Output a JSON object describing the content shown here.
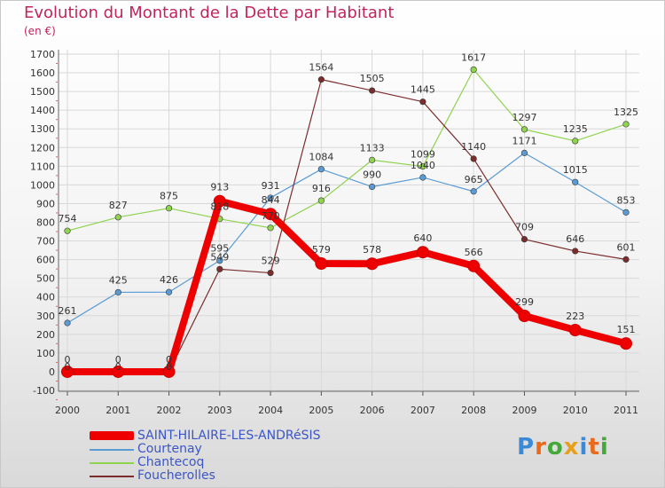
{
  "title": "Evolution du Montant de la Dette par Habitant",
  "unit": "(en €)",
  "logo_text": "Proxiti",
  "chart_data": {
    "type": "line",
    "title": "Evolution du Montant de la Dette par Habitant",
    "ylabel": "(en €)",
    "xlabel": "",
    "x": [
      "2000",
      "2001",
      "2002",
      "2003",
      "2004",
      "2005",
      "2006",
      "2007",
      "2008",
      "2009",
      "2010",
      "2011"
    ],
    "ylim": [
      -100,
      1700
    ],
    "y_ticks": [
      -100,
      0,
      100,
      200,
      300,
      400,
      500,
      600,
      700,
      800,
      900,
      1000,
      1100,
      1200,
      1300,
      1400,
      1500,
      1600,
      1700
    ],
    "grid": true,
    "legend_position": "bottom-left",
    "series": [
      {
        "name": "SAINT-HILAIRE-LES-ANDRéSIS",
        "color": "#ee0000",
        "values": [
          0,
          0,
          0,
          913,
          844,
          579,
          578,
          640,
          566,
          299,
          223,
          151
        ]
      },
      {
        "name": "Courtenay",
        "color": "#5b9bd5",
        "values": [
          261,
          425,
          426,
          595,
          931,
          1084,
          990,
          1040,
          965,
          1171,
          1015,
          853
        ]
      },
      {
        "name": "Chantecoq",
        "color": "#8fd34f",
        "values": [
          754,
          827,
          875,
          818,
          770,
          916,
          1133,
          1099,
          1617,
          1297,
          1235,
          1325
        ]
      },
      {
        "name": "Foucherolles",
        "color": "#7b2c2c",
        "values": [
          0,
          0,
          0,
          549,
          529,
          1564,
          1505,
          1445,
          1140,
          709,
          646,
          601
        ]
      }
    ]
  }
}
